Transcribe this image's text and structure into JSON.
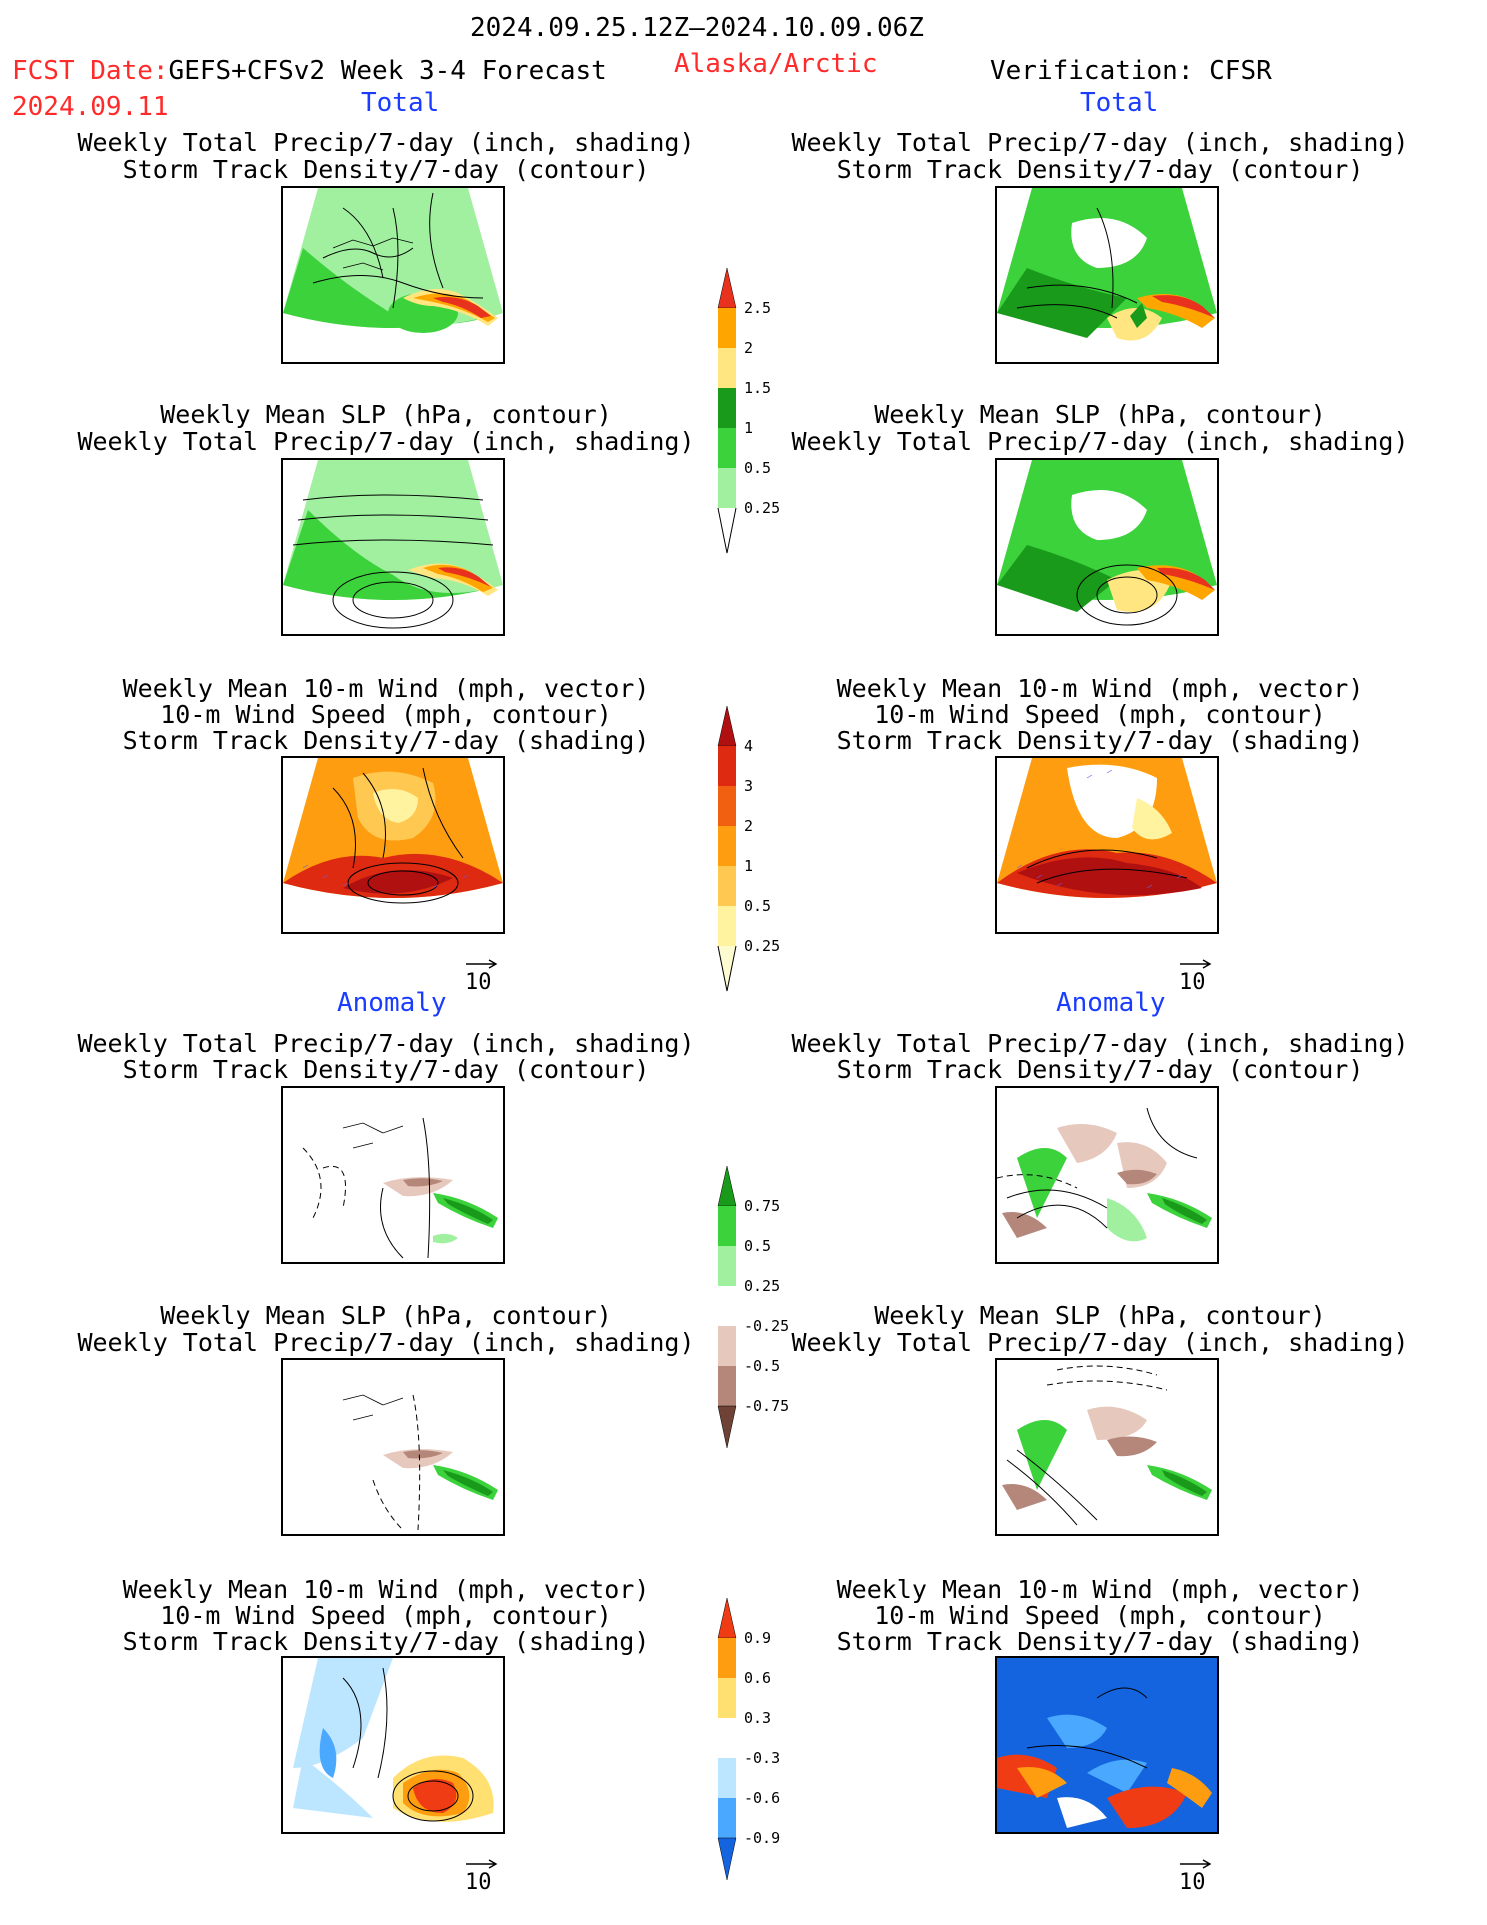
{
  "header": {
    "period": "2024.09.25.12Z–2024.10.09.06Z",
    "fcst_prefix": "FCST Date:",
    "model": "GEFS+CFSv2 Week 3-4 Forecast",
    "region": "Alaska/Arctic",
    "verification": "Verification: CFSR",
    "fcst_date": "2024.09.11"
  },
  "sections": {
    "total_left": "Total",
    "total_right": "Total",
    "anom_left": "Anomaly",
    "anom_right": "Anomaly"
  },
  "titles": {
    "precip_storm": [
      "Weekly Total Precip/7-day (inch, shading)",
      "Storm Track Density/7-day (contour)"
    ],
    "slp_precip": [
      "Weekly Mean SLP (hPa, contour)",
      "Weekly Total Precip/7-day (inch, shading)"
    ],
    "wind_storm": [
      "Weekly Mean 10-m Wind (mph, vector)",
      "10-m Wind Speed (mph, contour)",
      "Storm Track Density/7-day (shading)"
    ]
  },
  "vector_ref": "10",
  "colorbars": {
    "precip_total": {
      "labels": [
        "2.5",
        "2",
        "1.5",
        "1",
        "0.5",
        "0.25"
      ],
      "colors": [
        "#e8321e",
        "#ffa500",
        "#ffe680",
        "#1a9a1a",
        "#3cd23c",
        "#a0f0a0"
      ]
    },
    "storm_total": {
      "labels": [
        "4",
        "3",
        "2",
        "1",
        "0.5",
        "0.25"
      ],
      "colors": [
        "#b01010",
        "#dd2a10",
        "#f06010",
        "#ff9d10",
        "#ffc850",
        "#fff3a0",
        "#fffbd0"
      ]
    },
    "precip_anom": {
      "labels": [
        "0.75",
        "0.5",
        "0.25",
        "-0.25",
        "-0.5",
        "-0.75"
      ],
      "colors": [
        "#1a9a1a",
        "#3cd23c",
        "#a0f0a0",
        "#ffffff",
        "#e6c8bc",
        "#b4877a",
        "#6e4234"
      ]
    },
    "storm_anom": {
      "labels": [
        "0.9",
        "0.6",
        "0.3",
        "-0.3",
        "-0.6",
        "-0.9"
      ],
      "colors": [
        "#f03c14",
        "#ff9d10",
        "#ffe070",
        "#ffffff",
        "#bce6ff",
        "#4aa8ff",
        "#1464e0"
      ]
    }
  }
}
